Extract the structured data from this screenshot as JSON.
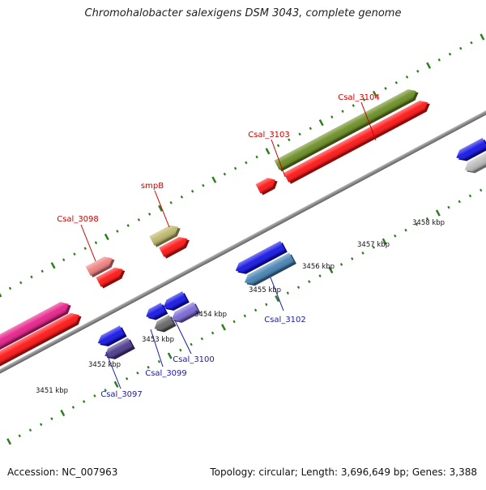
{
  "title": "Chromohalobacter salexigens DSM 3043, complete genome",
  "footer": {
    "accession": "Accession: NC_007963",
    "summary": "Topology: circular; Length: 3,696,649 bp; Genes: 3,388"
  },
  "colors": {
    "forward_label": "#cc0000",
    "reverse_label": "#1a1aa6",
    "backbone": "#8c8c8c",
    "scale_tick": "#2e7d1f"
  },
  "ticks": [
    "3451 kbp",
    "3452 kbp",
    "3453 kbp",
    "3454 kbp",
    "3455 kbp",
    "3456 kbp",
    "3457 kbp",
    "3458 kbp"
  ],
  "genes": [
    {
      "id": "g_left_pink",
      "strand": "+",
      "label": "",
      "color": "#e8208a"
    },
    {
      "id": "g_left_red",
      "strand": "+",
      "label": "",
      "color": "#ff1414"
    },
    {
      "id": "g_3097",
      "strand": "-",
      "label": "Csal_3097",
      "color": "#1414e6"
    },
    {
      "id": "g_3097b",
      "strand": "-",
      "label": "",
      "color": "#4b3a8c"
    },
    {
      "id": "g_3098",
      "strand": "+",
      "label": "Csal_3098",
      "color": "#f08080"
    },
    {
      "id": "g_3098b",
      "strand": "+",
      "label": "",
      "color": "#ff1414"
    },
    {
      "id": "g_3099",
      "strand": "-",
      "label": "Csal_3099",
      "color": "#1414e6"
    },
    {
      "id": "g_3099b",
      "strand": "-",
      "label": "",
      "color": "#666666"
    },
    {
      "id": "g_3100",
      "strand": "-",
      "label": "Csal_3100",
      "color": "#1414e6"
    },
    {
      "id": "g_3100b",
      "strand": "-",
      "label": "",
      "color": "#7b68d6"
    },
    {
      "id": "g_smpB",
      "strand": "+",
      "label": "smpB",
      "color": "#bdb76b"
    },
    {
      "id": "g_smpBb",
      "strand": "+",
      "label": "",
      "color": "#ff1414"
    },
    {
      "id": "g_3102",
      "strand": "-",
      "label": "Csal_3102",
      "color": "#1414e6"
    },
    {
      "id": "g_3102b",
      "strand": "-",
      "label": "",
      "color": "#4682b4"
    },
    {
      "id": "g_3103",
      "strand": "+",
      "label": "Csal_3103",
      "color": "#ff1414"
    },
    {
      "id": "g_3104",
      "strand": "+",
      "label": "Csal_3104",
      "color": "#6b8e23"
    },
    {
      "id": "g_3104b",
      "strand": "+",
      "label": "",
      "color": "#ff1414"
    },
    {
      "id": "g_right_blue",
      "strand": "-",
      "label": "",
      "color": "#1414e6"
    },
    {
      "id": "g_right_grey",
      "strand": "-",
      "label": "",
      "color": "#bbbbbb"
    }
  ]
}
